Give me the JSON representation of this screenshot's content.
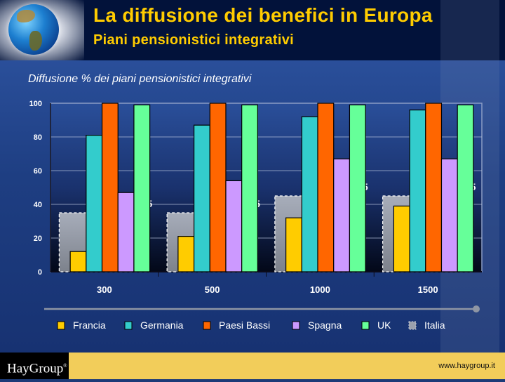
{
  "header": {
    "title": "La diffusione dei benefici in Europa",
    "subtitle": "Piani pensionistici integrativi"
  },
  "footer": {
    "logo": "HayGroup",
    "url": "www.haygroup.it"
  },
  "chart_data": {
    "type": "bar",
    "title": "Diffusione % dei piani pensionistici integrativi",
    "xlabel": "",
    "ylabel": "",
    "ylim": [
      0,
      100
    ],
    "yticks": [
      0,
      20,
      40,
      60,
      80,
      100
    ],
    "grid": true,
    "legend_position": "bottom",
    "categories": [
      "300",
      "500",
      "1000",
      "1500"
    ],
    "series": [
      {
        "name": "Francia",
        "color": "#ffcc00",
        "values": [
          12,
          21,
          32,
          39
        ]
      },
      {
        "name": "Germania",
        "color": "#33cccc",
        "values": [
          81,
          87,
          92,
          96
        ]
      },
      {
        "name": "Paesi Bassi",
        "color": "#ff6600",
        "values": [
          100,
          100,
          100,
          100
        ]
      },
      {
        "name": "Spagna",
        "color": "#cc99ff",
        "values": [
          47,
          54,
          67,
          67
        ]
      },
      {
        "name": "UK",
        "color": "#66ff99",
        "values": [
          99,
          99,
          99,
          99
        ]
      }
    ],
    "background_series": {
      "name": "Italia",
      "color": "#9aa0ad",
      "values": [
        35,
        35,
        45,
        45
      ],
      "labels": [
        "35",
        "35",
        "45",
        "45"
      ]
    }
  }
}
